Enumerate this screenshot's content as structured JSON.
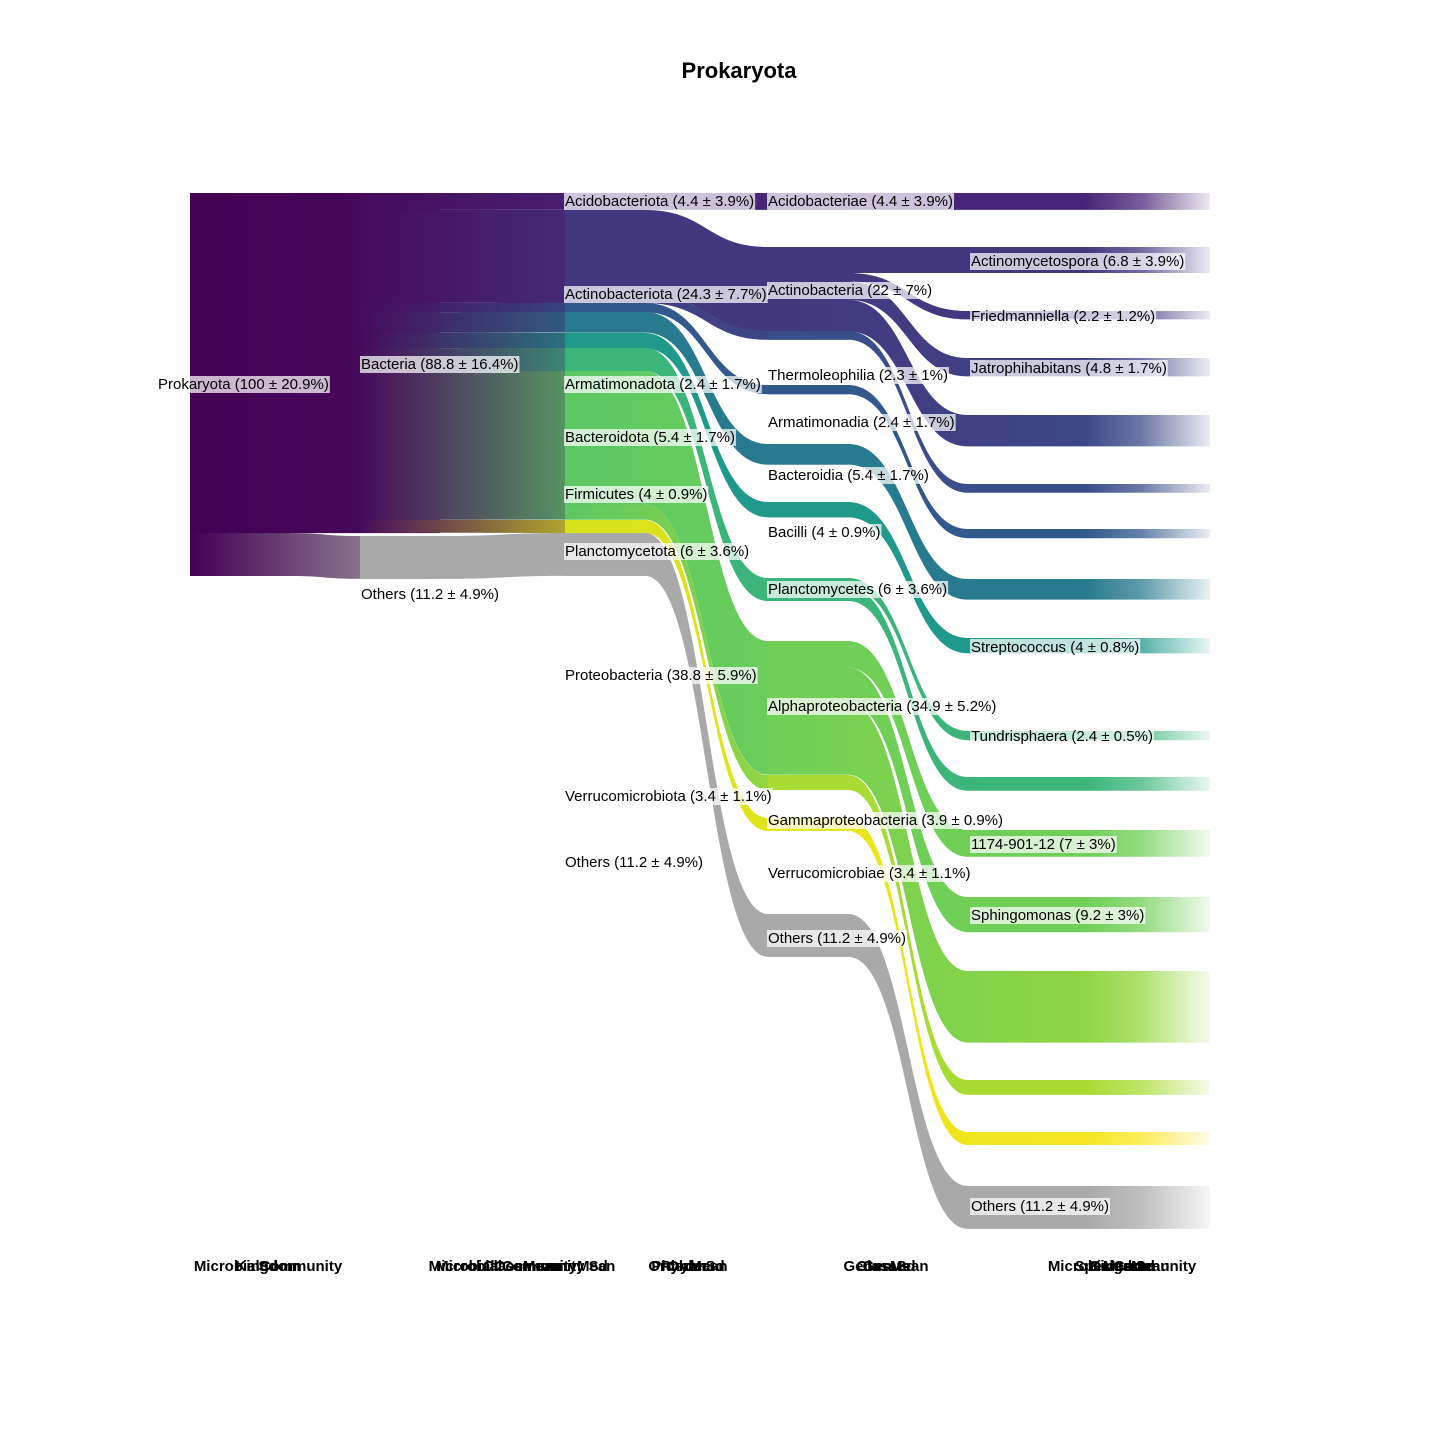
{
  "chart_data": {
    "type": "sankey",
    "title": "Prokaryota",
    "value_unit": "percent",
    "nodes": [
      {
        "id": "prok",
        "label": "Prokaryota (100 ± 20.9%)",
        "level": 0,
        "mean": 100,
        "sd": 20.9,
        "color": "#440154"
      },
      {
        "id": "bact",
        "label": "Bacteria (88.8 ± 16.4%)",
        "level": 1,
        "mean": 88.8,
        "sd": 16.4,
        "color": "#470B5C"
      },
      {
        "id": "oth1",
        "label": "Others (11.2 ± 4.9%)",
        "level": 1,
        "mean": 11.2,
        "sd": 4.9,
        "color": "#A9A9A9"
      },
      {
        "id": "acidp",
        "label": "Acidobacteriota (4.4 ± 3.9%)",
        "level": 2,
        "mean": 4.4,
        "sd": 3.9,
        "color": "#482677"
      },
      {
        "id": "actp",
        "label": "Actinobacteriota (24.3 ± 7.7%)",
        "level": 2,
        "mean": 24.3,
        "sd": 7.7,
        "color": "#433780"
      },
      {
        "id": "armp",
        "label": "Armatimonadota (2.4 ± 1.7%)",
        "level": 2,
        "mean": 2.4,
        "sd": 1.7,
        "color": "#31598C"
      },
      {
        "id": "bacp",
        "label": "Bacteroidota (5.4 ± 1.7%)",
        "level": 2,
        "mean": 5.4,
        "sd": 1.7,
        "color": "#287A8E"
      },
      {
        "id": "firp",
        "label": "Firmicutes (4 ± 0.9%)",
        "level": 2,
        "mean": 4,
        "sd": 0.9,
        "color": "#1F998A"
      },
      {
        "id": "plap",
        "label": "Planctomycetota (6 ± 3.6%)",
        "level": 2,
        "mean": 6,
        "sd": 3.6,
        "color": "#3BB57A"
      },
      {
        "id": "prop",
        "label": "Proteobacteria (38.8 ± 5.9%)",
        "level": 2,
        "mean": 38.8,
        "sd": 5.9,
        "color": "#5CC865"
      },
      {
        "id": "verp",
        "label": "Verrucomicrobiota (3.4 ± 1.1%)",
        "level": 2,
        "mean": 3.4,
        "sd": 1.1,
        "color": "#D5E21A"
      },
      {
        "id": "oth2",
        "label": "Others (11.2 ± 4.9%)",
        "level": 2,
        "mean": 11.2,
        "sd": 4.9,
        "color": "#A9A9A9"
      },
      {
        "id": "acidc",
        "label": "Acidobacteriae (4.4 ± 3.9%)",
        "level": 3,
        "mean": 4.4,
        "sd": 3.9,
        "color": "#482677"
      },
      {
        "id": "actc",
        "label": "Actinobacteria (22 ± 7%)",
        "level": 3,
        "mean": 22,
        "sd": 7,
        "color": "#433780"
      },
      {
        "id": "thec",
        "label": "Thermoleophilia (2.3 ± 1%)",
        "level": 3,
        "mean": 2.3,
        "sd": 1,
        "color": "#3B4D8A"
      },
      {
        "id": "armc",
        "label": "Armatimonadia (2.4 ± 1.7%)",
        "level": 3,
        "mean": 2.4,
        "sd": 1.7,
        "color": "#31598C"
      },
      {
        "id": "bacc",
        "label": "Bacteroidia (5.4 ± 1.7%)",
        "level": 3,
        "mean": 5.4,
        "sd": 1.7,
        "color": "#287A8E"
      },
      {
        "id": "bacic",
        "label": "Bacilli (4 ± 0.9%)",
        "level": 3,
        "mean": 4,
        "sd": 0.9,
        "color": "#1F998A"
      },
      {
        "id": "plac",
        "label": "Planctomycetes (6 ± 3.6%)",
        "level": 3,
        "mean": 6,
        "sd": 3.6,
        "color": "#3BB57A"
      },
      {
        "id": "alpc",
        "label": "Alphaproteobacteria (34.9 ± 5.2%)",
        "level": 3,
        "mean": 34.9,
        "sd": 5.2,
        "color": "#70CF57"
      },
      {
        "id": "gamc",
        "label": "Gammaproteobacteria (3.9 ± 0.9%)",
        "level": 3,
        "mean": 3.9,
        "sd": 0.9,
        "color": "#A8DB34"
      },
      {
        "id": "verc",
        "label": "Verrucomicrobiae (3.4 ± 1.1%)",
        "level": 3,
        "mean": 3.4,
        "sd": 1.1,
        "color": "#E5E419"
      },
      {
        "id": "oth3",
        "label": "Others (11.2 ± 4.9%)",
        "level": 3,
        "mean": 11.2,
        "sd": 4.9,
        "color": "#A9A9A9"
      },
      {
        "id": "g_acid",
        "label": "",
        "level": 4,
        "mean": 4.4,
        "color": "#482677"
      },
      {
        "id": "g_actino",
        "label": "Actinomycetospora (6.8 ± 3.9%)",
        "level": 4,
        "mean": 6.8,
        "sd": 3.9,
        "color": "#433780"
      },
      {
        "id": "g_fried",
        "label": "Friedmanniella (2.2 ± 1.2%)",
        "level": 4,
        "mean": 2.2,
        "sd": 1.2,
        "color": "#433780"
      },
      {
        "id": "g_jatro",
        "label": "Jatrophihabitans (4.8 ± 1.7%)",
        "level": 4,
        "mean": 4.8,
        "sd": 1.7,
        "color": "#3D4A89"
      },
      {
        "id": "g_actoth",
        "label": "",
        "level": 4,
        "mean": 8.2,
        "color": "#3B4D8A"
      },
      {
        "id": "g_therm",
        "label": "",
        "level": 4,
        "mean": 2.3,
        "color": "#3B4D8A"
      },
      {
        "id": "g_arm",
        "label": "",
        "level": 4,
        "mean": 2.4,
        "color": "#31598C"
      },
      {
        "id": "g_bact",
        "label": "",
        "level": 4,
        "mean": 5.4,
        "color": "#287A8E"
      },
      {
        "id": "g_strep",
        "label": "Streptococcus (4 ± 0.8%)",
        "level": 4,
        "mean": 4,
        "sd": 0.8,
        "color": "#1F998A"
      },
      {
        "id": "g_tundr",
        "label": "Tundrisphaera (2.4 ± 0.5%)",
        "level": 4,
        "mean": 2.4,
        "sd": 0.5,
        "color": "#3BB57A"
      },
      {
        "id": "g_plaoth",
        "label": "",
        "level": 4,
        "mean": 3.6,
        "color": "#3BB57A"
      },
      {
        "id": "g_1174",
        "label": "1174-901-12 (7 ± 3%)",
        "level": 4,
        "mean": 7,
        "sd": 3,
        "color": "#70CF57"
      },
      {
        "id": "g_sphin",
        "label": "Sphingomonas (9.2 ± 3%)",
        "level": 4,
        "mean": 9.2,
        "sd": 3,
        "color": "#70CF57"
      },
      {
        "id": "g_alpoth",
        "label": "",
        "level": 4,
        "mean": 18.7,
        "color": "#9AD83C"
      },
      {
        "id": "g_gam",
        "label": "",
        "level": 4,
        "mean": 3.9,
        "color": "#A8DB34"
      },
      {
        "id": "g_ver",
        "label": "",
        "level": 4,
        "mean": 3.4,
        "color": "#FDE725"
      },
      {
        "id": "g_oth",
        "label": "Others (11.2 ± 4.9%)",
        "level": 4,
        "mean": 11.2,
        "sd": 4.9,
        "color": "#A9A9A9"
      }
    ],
    "links": [
      {
        "source": "prok",
        "target": "bact",
        "value": 88.8
      },
      {
        "source": "prok",
        "target": "oth1",
        "value": 11.2
      },
      {
        "source": "bact",
        "target": "acidp",
        "value": 4.4
      },
      {
        "source": "bact",
        "target": "actp",
        "value": 24.3
      },
      {
        "source": "bact",
        "target": "armp",
        "value": 2.4
      },
      {
        "source": "bact",
        "target": "bacp",
        "value": 5.4
      },
      {
        "source": "bact",
        "target": "firp",
        "value": 4
      },
      {
        "source": "bact",
        "target": "plap",
        "value": 6
      },
      {
        "source": "bact",
        "target": "prop",
        "value": 38.8
      },
      {
        "source": "bact",
        "target": "verp",
        "value": 3.4
      },
      {
        "source": "oth1",
        "target": "oth2",
        "value": 11.2
      },
      {
        "source": "acidp",
        "target": "acidc",
        "value": 4.4
      },
      {
        "source": "actp",
        "target": "actc",
        "value": 22
      },
      {
        "source": "actp",
        "target": "thec",
        "value": 2.3
      },
      {
        "source": "armp",
        "target": "armc",
        "value": 2.4
      },
      {
        "source": "bacp",
        "target": "bacc",
        "value": 5.4
      },
      {
        "source": "firp",
        "target": "bacic",
        "value": 4
      },
      {
        "source": "plap",
        "target": "plac",
        "value": 6
      },
      {
        "source": "prop",
        "target": "alpc",
        "value": 34.9
      },
      {
        "source": "prop",
        "target": "gamc",
        "value": 3.9
      },
      {
        "source": "verp",
        "target": "verc",
        "value": 3.4
      },
      {
        "source": "oth2",
        "target": "oth3",
        "value": 11.2
      },
      {
        "source": "acidc",
        "target": "g_acid",
        "value": 4.4
      },
      {
        "source": "actc",
        "target": "g_actino",
        "value": 6.8
      },
      {
        "source": "actc",
        "target": "g_fried",
        "value": 2.2
      },
      {
        "source": "actc",
        "target": "g_jatro",
        "value": 4.8
      },
      {
        "source": "actc",
        "target": "g_actoth",
        "value": 8.2
      },
      {
        "source": "thec",
        "target": "g_therm",
        "value": 2.3
      },
      {
        "source": "armc",
        "target": "g_arm",
        "value": 2.4
      },
      {
        "source": "bacc",
        "target": "g_bact",
        "value": 5.4
      },
      {
        "source": "bacic",
        "target": "g_strep",
        "value": 4
      },
      {
        "source": "plac",
        "target": "g_tundr",
        "value": 2.4
      },
      {
        "source": "plac",
        "target": "g_plaoth",
        "value": 3.6
      },
      {
        "source": "alpc",
        "target": "g_1174",
        "value": 7
      },
      {
        "source": "alpc",
        "target": "g_sphin",
        "value": 9.2
      },
      {
        "source": "alpc",
        "target": "g_alpoth",
        "value": 18.7
      },
      {
        "source": "gamc",
        "target": "g_gam",
        "value": 3.9
      },
      {
        "source": "verc",
        "target": "g_ver",
        "value": 3.4
      },
      {
        "source": "oth3",
        "target": "g_oth",
        "value": 11.2
      }
    ],
    "axis_labels": [
      {
        "lines": [
          "Kingdom",
          "MicrobialCommunity",
          "Sd"
        ]
      },
      {
        "lines": [
          "MicrobialCommunityMean",
          "ClassMean",
          "MicrobialCommunity Sd"
        ]
      },
      {
        "lines": [
          "PhylumSd",
          "Order",
          "OrderMean",
          "Phylum"
        ]
      },
      {
        "lines": [
          "Genus",
          "GenusMean",
          "ClassSd"
        ]
      },
      {
        "lines": [
          "MicrobialCommunity",
          "Kingdom",
          "GenusSd",
          "Mean",
          "SpeciesMean"
        ]
      }
    ]
  }
}
